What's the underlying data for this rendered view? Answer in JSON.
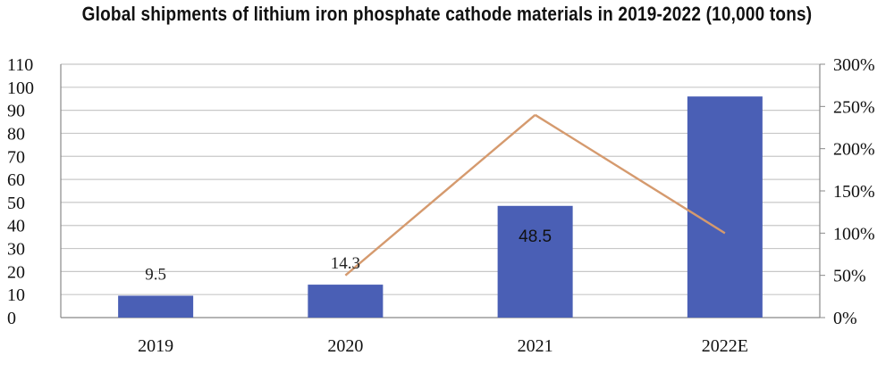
{
  "chart_data": {
    "type": "bar",
    "title": "Global shipments of lithium iron phosphate cathode materials in 2019-2022 (10,000 tons)",
    "categories": [
      "2019",
      "2020",
      "2021",
      "2022E"
    ],
    "series": [
      {
        "type": "bar",
        "axis": "left",
        "values": [
          9.5,
          14.3,
          48.5,
          96
        ],
        "data_labels": [
          "9.5",
          "14.3",
          "48.5",
          ""
        ]
      },
      {
        "type": "line",
        "axis": "right",
        "values": [
          null,
          50,
          240,
          100
        ]
      }
    ],
    "ylim_left": [
      0,
      110
    ],
    "yticks_left": [
      "0",
      "10",
      "20",
      "30",
      "40",
      "50",
      "60",
      "70",
      "80",
      "90",
      "100",
      "110"
    ],
    "ylim_right": [
      0,
      300
    ],
    "yticks_right": [
      "0%",
      "50%",
      "100%",
      "150%",
      "200%",
      "250%",
      "300%"
    ],
    "grid": true,
    "colors": {
      "bar": "#4a5fb5",
      "line": "#d59a6e",
      "grid": "#c8c8c8",
      "axis": "#888888"
    }
  }
}
